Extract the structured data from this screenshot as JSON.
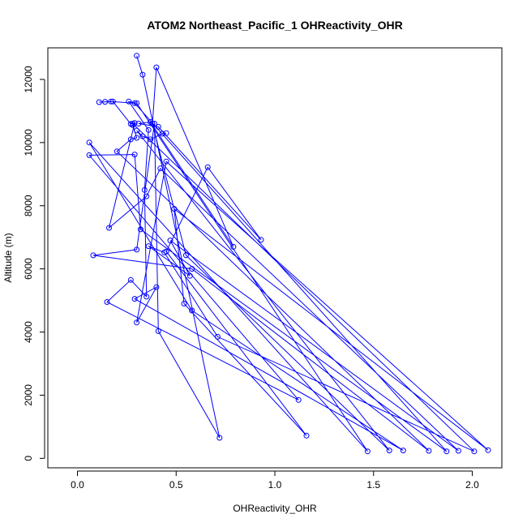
{
  "chart_data": {
    "type": "line",
    "title": "ATOM2 Northeast_Pacific_1 OHReactivity_OHR",
    "xlabel": "OHReactivity_OHR",
    "ylabel": "Altitude (m)",
    "xlim": [
      -0.15,
      2.15
    ],
    "ylim": [
      -300,
      13000
    ],
    "x_ticks": [
      0.0,
      0.5,
      1.0,
      1.5,
      2.0
    ],
    "x_tick_labels": [
      "0.0",
      "0.5",
      "1.0",
      "1.5",
      "2.0"
    ],
    "y_ticks": [
      0,
      2000,
      4000,
      6000,
      8000,
      10000,
      12000
    ],
    "y_tick_labels": [
      "0",
      "2000",
      "4000",
      "6000",
      "8000",
      "10000",
      "12000"
    ],
    "grid": false,
    "line_color": "#0000ff",
    "series": [
      {
        "x": [
          0.3,
          0.33,
          0.72,
          0.41,
          0.39,
          0.3,
          0.08,
          0.58,
          1.78,
          0.2,
          0.27,
          0.3,
          0.28,
          0.29,
          0.16,
          0.35,
          0.42,
          1.93,
          0.47,
          0.57,
          0.36,
          0.44,
          0.71,
          2.01,
          0.28,
          0.27,
          0.18,
          0.11,
          0.14,
          0.17,
          0.29,
          1.87,
          0.32,
          0.29,
          0.06,
          1.12,
          0.15,
          0.27,
          0.35,
          0.34,
          0.36,
          0.26,
          0.3,
          1.47,
          0.06,
          0.58,
          1.65,
          0.29,
          0.4,
          0.3,
          0.45,
          2.08,
          0.49,
          0.54,
          1.16,
          0.45,
          0.66,
          0.93,
          0.41,
          0.31,
          0.37,
          0.79,
          0.4,
          0.38,
          0.55,
          1.58,
          0.3,
          0.33,
          0.37,
          0.43,
          0.45
        ]
      },
      {
        "y": [
          12750,
          12150,
          650,
          4030,
          10600,
          6610,
          6430,
          6000,
          240,
          9720,
          10100,
          10150,
          10550,
          10620,
          7300,
          8300,
          9180,
          240,
          6900,
          5780,
          6720,
          6520,
          3850,
          220,
          10600,
          10590,
          11300,
          11280,
          11290,
          11300,
          11250,
          220,
          7250,
          9620,
          9600,
          1850,
          4950,
          5650,
          5120,
          8500,
          10400,
          11300,
          11250,
          220,
          10000,
          4680,
          250,
          5050,
          5420,
          4300,
          9400,
          260,
          7900,
          4900,
          720,
          6550,
          9220,
          6920,
          10500,
          10600,
          10650,
          6700,
          12380,
          10600,
          6430,
          250,
          10380,
          10200,
          10100,
          10280,
          10300
        ]
      }
    ]
  }
}
